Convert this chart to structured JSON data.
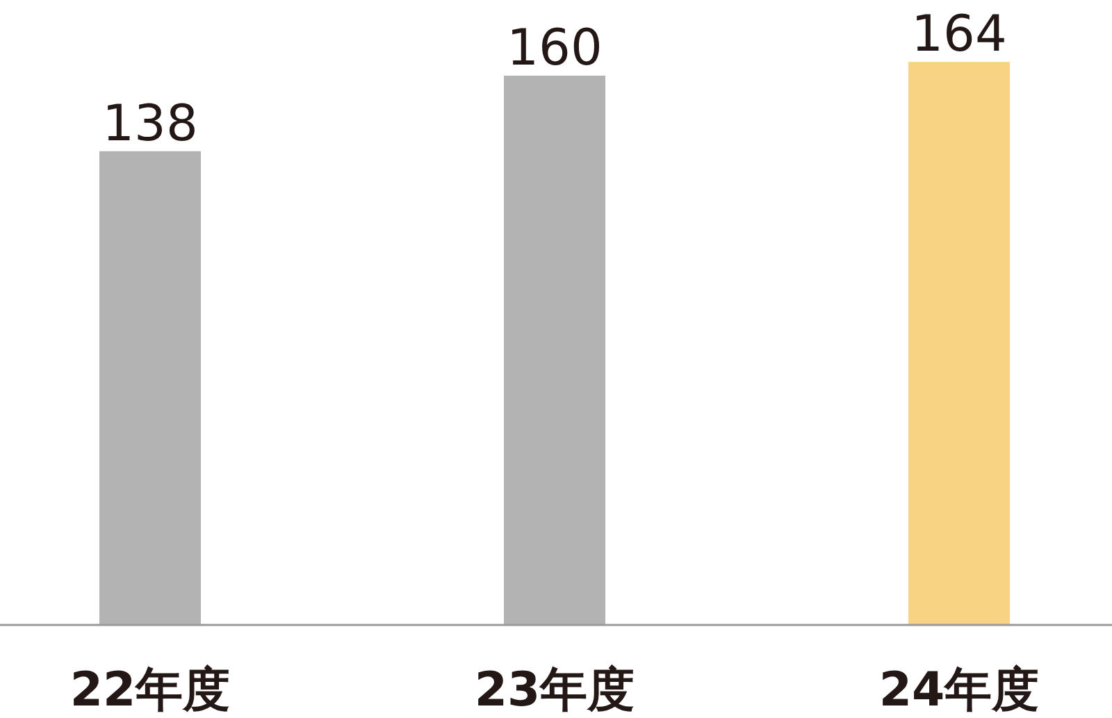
{
  "chart_data": {
    "type": "bar",
    "categories": [
      "22年度",
      "23年度",
      "24年度"
    ],
    "values": [
      138,
      160,
      164
    ],
    "colors": [
      "#b3b3b3",
      "#b3b3b3",
      "#f8d384"
    ],
    "data_labels": true
  }
}
